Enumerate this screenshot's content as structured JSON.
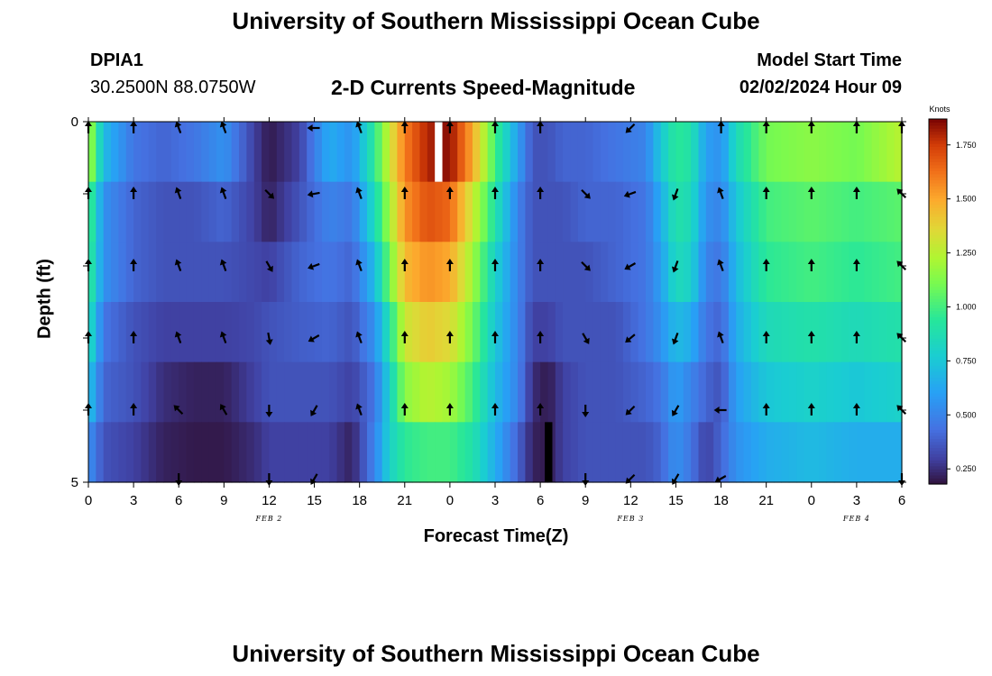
{
  "header": {
    "main_title": "University of Southern Mississippi Ocean Cube",
    "station": "DPIA1",
    "coords": "30.2500N  88.0750W",
    "plot_title": "2-D Currents Speed-Magnitude",
    "model_start_label": "Model Start Time",
    "model_start_value": "02/02/2024 Hour 09"
  },
  "footer": {
    "second_title": "University of Southern Mississippi Ocean Cube"
  },
  "chart_data": {
    "type": "heatmap",
    "title": "2-D Currents Speed-Magnitude",
    "xlabel": "Forecast Time(Z)",
    "ylabel": "Depth (ft)",
    "x_hours_since_start": [
      0,
      3,
      6,
      9,
      12,
      15,
      18,
      21,
      24,
      27,
      30,
      33,
      36,
      39,
      42,
      45,
      48,
      51,
      54
    ],
    "x_tick_labels": [
      "0",
      "3",
      "6",
      "9",
      "12",
      "15",
      "18",
      "21",
      "0",
      "3",
      "6",
      "9",
      "12",
      "15",
      "18",
      "21",
      "0",
      "3",
      "6"
    ],
    "xlim": [
      0,
      54
    ],
    "date_labels": [
      {
        "hour": 12,
        "text": "FEB 2"
      },
      {
        "hour": 36,
        "text": "FEB 3"
      },
      {
        "hour": 51,
        "text": "FEB 4"
      }
    ],
    "depth_ticks": [
      {
        "value": 0,
        "label": "0"
      },
      {
        "value": 1,
        "label": ""
      },
      {
        "value": 2,
        "label": ""
      },
      {
        "value": 3,
        "label": ""
      },
      {
        "value": 4,
        "label": ""
      },
      {
        "value": 5,
        "label": "5"
      }
    ],
    "ylim": [
      0,
      5
    ],
    "depth_rows": 6,
    "speed_profile_knots": [
      {
        "h": 0,
        "s": [
          1.25,
          1.05,
          1.0,
          0.9,
          0.75,
          0.55
        ]
      },
      {
        "h": 1,
        "s": [
          0.7,
          0.55,
          0.55,
          0.45,
          0.4,
          0.35
        ]
      },
      {
        "h": 3,
        "s": [
          0.45,
          0.4,
          0.4,
          0.35,
          0.35,
          0.3
        ]
      },
      {
        "h": 5,
        "s": [
          0.4,
          0.35,
          0.35,
          0.3,
          0.25,
          0.22
        ]
      },
      {
        "h": 7,
        "s": [
          0.45,
          0.35,
          0.35,
          0.3,
          0.22,
          0.2
        ]
      },
      {
        "h": 9,
        "s": [
          0.55,
          0.4,
          0.35,
          0.3,
          0.22,
          0.2
        ]
      },
      {
        "h": 11,
        "s": [
          0.3,
          0.3,
          0.32,
          0.32,
          0.3,
          0.25
        ]
      },
      {
        "h": 12,
        "s": [
          0.2,
          0.22,
          0.3,
          0.35,
          0.35,
          0.3
        ]
      },
      {
        "h": 14,
        "s": [
          0.3,
          0.35,
          0.4,
          0.38,
          0.35,
          0.3
        ]
      },
      {
        "h": 16,
        "s": [
          0.65,
          0.5,
          0.45,
          0.4,
          0.35,
          0.3
        ]
      },
      {
        "h": 17.5,
        "s": [
          0.55,
          0.45,
          0.4,
          0.35,
          0.3,
          0.22
        ]
      },
      {
        "h": 19,
        "s": [
          0.95,
          0.85,
          0.7,
          0.55,
          0.45,
          0.5
        ]
      },
      {
        "h": 20,
        "s": [
          1.3,
          1.2,
          1.1,
          0.9,
          0.8,
          0.8
        ]
      },
      {
        "h": 21,
        "s": [
          1.6,
          1.55,
          1.45,
          1.3,
          1.15,
          0.95
        ]
      },
      {
        "h": 22.5,
        "s": [
          1.8,
          1.7,
          1.55,
          1.4,
          1.25,
          1.0
        ]
      },
      {
        "h": 24,
        "s": [
          1.85,
          1.65,
          1.5,
          1.35,
          1.2,
          1.0
        ]
      },
      {
        "h": 25.5,
        "s": [
          1.5,
          1.3,
          1.2,
          1.1,
          1.0,
          0.9
        ]
      },
      {
        "h": 27,
        "s": [
          1.0,
          0.9,
          0.8,
          0.75,
          0.7,
          0.65
        ]
      },
      {
        "h": 28.5,
        "s": [
          0.6,
          0.5,
          0.5,
          0.5,
          0.5,
          0.4
        ]
      },
      {
        "h": 29.5,
        "s": [
          0.35,
          0.35,
          0.35,
          0.3,
          0.25,
          0.22
        ]
      },
      {
        "h": 30.5,
        "s": [
          0.35,
          0.35,
          0.35,
          0.3,
          0.2,
          0.2
        ]
      },
      {
        "h": 31.5,
        "s": [
          0.4,
          0.35,
          0.35,
          0.35,
          0.3,
          0.3
        ]
      },
      {
        "h": 33,
        "s": [
          0.4,
          0.4,
          0.35,
          0.35,
          0.35,
          0.35
        ]
      },
      {
        "h": 35,
        "s": [
          0.45,
          0.4,
          0.4,
          0.35,
          0.35,
          0.35
        ]
      },
      {
        "h": 37,
        "s": [
          0.5,
          0.45,
          0.45,
          0.45,
          0.4,
          0.35
        ]
      },
      {
        "h": 38,
        "s": [
          0.75,
          0.65,
          0.6,
          0.55,
          0.45,
          0.4
        ]
      },
      {
        "h": 39,
        "s": [
          0.95,
          0.9,
          0.85,
          0.7,
          0.6,
          0.55
        ]
      },
      {
        "h": 40,
        "s": [
          0.9,
          0.85,
          0.8,
          0.65,
          0.5,
          0.45
        ]
      },
      {
        "h": 41,
        "s": [
          0.6,
          0.55,
          0.5,
          0.45,
          0.4,
          0.3
        ]
      },
      {
        "h": 42,
        "s": [
          0.55,
          0.5,
          0.45,
          0.4,
          0.35,
          0.4
        ]
      },
      {
        "h": 43,
        "s": [
          0.85,
          0.75,
          0.7,
          0.65,
          0.6,
          0.55
        ]
      },
      {
        "h": 45,
        "s": [
          1.1,
          1.0,
          0.95,
          0.85,
          0.75,
          0.65
        ]
      },
      {
        "h": 48,
        "s": [
          1.15,
          1.05,
          1.0,
          0.9,
          0.8,
          0.7
        ]
      },
      {
        "h": 51,
        "s": [
          1.1,
          1.0,
          0.95,
          0.85,
          0.75,
          0.65
        ]
      },
      {
        "h": 54,
        "s": [
          1.25,
          1.05,
          1.0,
          0.9,
          0.8,
          0.65
        ]
      }
    ],
    "missing_data": [
      {
        "h_start": 23,
        "h_end": 23.5,
        "row": 0,
        "color": "#ffffff"
      },
      {
        "h_start": 30.3,
        "h_end": 30.8,
        "row": 5,
        "color": "#000000"
      }
    ],
    "vectors": {
      "hours": [
        0,
        3,
        6,
        9,
        12,
        15,
        18,
        21,
        24,
        27,
        30,
        33,
        36,
        39,
        42,
        45,
        48,
        51,
        54
      ],
      "row_depths": [
        0,
        1,
        2,
        3,
        4,
        4.95
      ],
      "angles_deg": [
        [
          180,
          180,
          160,
          160,
          null,
          90,
          160,
          180,
          180,
          180,
          180,
          null,
          45,
          null,
          180,
          180,
          180,
          180,
          180
        ],
        [
          180,
          180,
          160,
          160,
          -45,
          80,
          160,
          180,
          180,
          180,
          180,
          -45,
          70,
          20,
          160,
          180,
          180,
          180,
          135
        ],
        [
          180,
          180,
          160,
          160,
          -30,
          70,
          160,
          180,
          180,
          180,
          180,
          -45,
          60,
          20,
          160,
          180,
          180,
          180,
          135
        ],
        [
          180,
          180,
          160,
          160,
          -10,
          60,
          160,
          180,
          180,
          180,
          180,
          -30,
          50,
          20,
          160,
          180,
          180,
          180,
          135
        ],
        [
          180,
          180,
          135,
          150,
          0,
          30,
          160,
          180,
          180,
          180,
          180,
          0,
          45,
          30,
          90,
          180,
          180,
          180,
          135
        ],
        [
          null,
          null,
          0,
          null,
          0,
          30,
          null,
          null,
          null,
          null,
          null,
          0,
          45,
          30,
          60,
          null,
          null,
          null,
          0
        ]
      ]
    },
    "colorbar": {
      "label": "Knots",
      "min": 0.18,
      "max": 1.87,
      "ticks": [
        0.25,
        0.5,
        0.75,
        1.0,
        1.25,
        1.5,
        1.75
      ],
      "tick_labels": [
        "0.250",
        "0.500",
        "0.750",
        "1.000",
        "1.250",
        "1.500",
        "1.750"
      ],
      "colormap": "turbo"
    }
  }
}
